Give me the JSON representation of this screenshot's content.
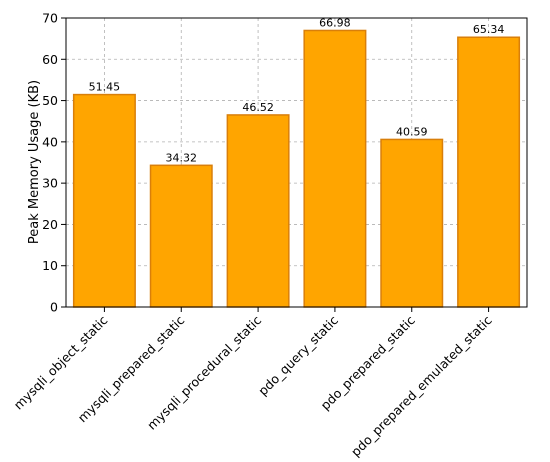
{
  "chart_data": {
    "type": "bar",
    "title": "",
    "xlabel": "",
    "ylabel": "Peak Memory Usage (KB)",
    "categories": [
      "mysqli_object_static",
      "mysqli_prepared_static",
      "mysqli_procedural_static",
      "pdo_query_static",
      "pdo_prepared_static",
      "pdo_prepared_emulated_static"
    ],
    "values": [
      51.45,
      34.32,
      46.52,
      66.98,
      40.59,
      65.34
    ],
    "value_labels": [
      "51.45",
      "34.32",
      "46.52",
      "66.98",
      "40.59",
      "65.34"
    ],
    "ylim": [
      0,
      70
    ],
    "yticks": [
      0,
      10,
      20,
      30,
      40,
      50,
      60,
      70
    ],
    "ytick_labels": [
      "0",
      "10",
      "20",
      "30",
      "40",
      "50",
      "60",
      "70"
    ],
    "grid": true,
    "colors": {
      "bar_fill": "#FFA500",
      "bar_edge": "#D97F0A",
      "grid": "#B0B0B0",
      "axis": "#000000"
    }
  }
}
